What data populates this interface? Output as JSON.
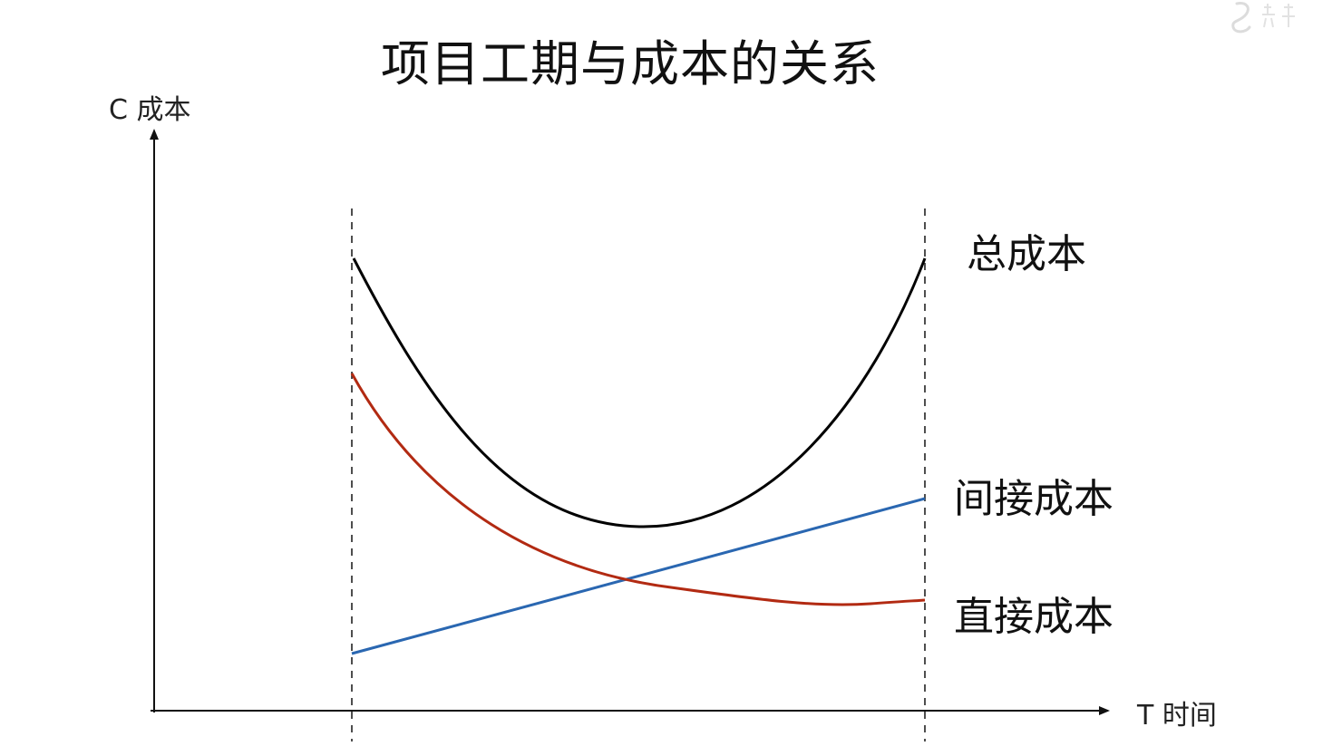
{
  "title": "项目工期与成本的关系",
  "axes": {
    "y_label": "C 成本",
    "x_label": "T 时间"
  },
  "curves": {
    "total": {
      "label": "总成本",
      "color": "#000000"
    },
    "indirect": {
      "label": "间接成本",
      "color": "#2a67b1"
    },
    "direct": {
      "label": "直接成本",
      "color": "#b22a12"
    }
  },
  "colors": {
    "axis": "#111111",
    "guide": "#222222",
    "watermark": "#dcdcdc"
  },
  "icons": {
    "watermark": "logo-watermark"
  }
}
